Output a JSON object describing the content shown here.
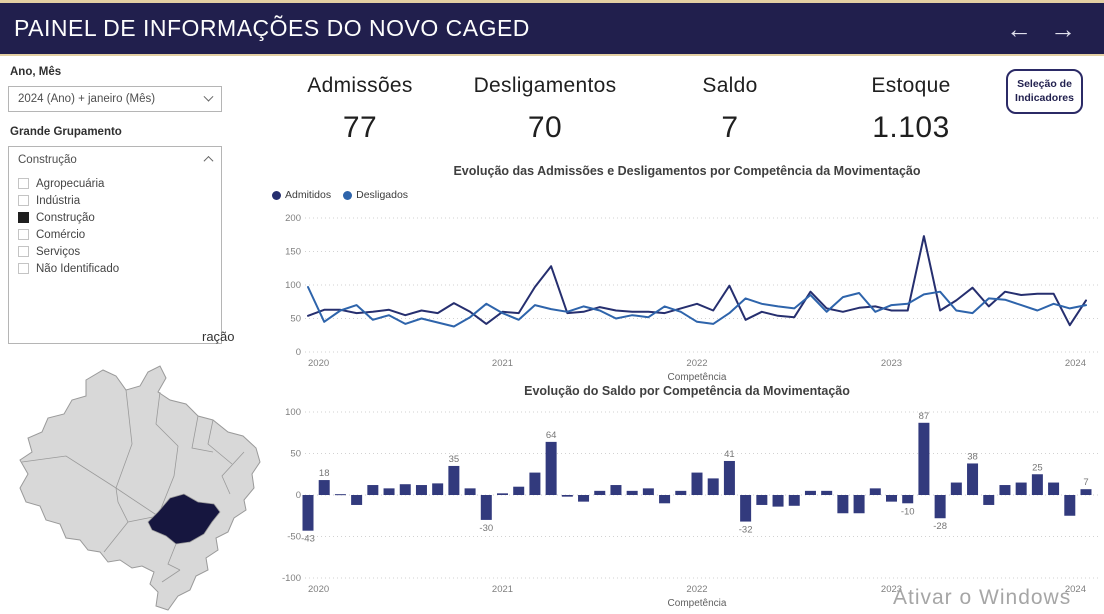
{
  "header": {
    "title": "PAINEL DE INFORMAÇÕES DO NOVO CAGED",
    "nav_back": "←",
    "nav_forward": "→"
  },
  "filters": {
    "ano_mes": {
      "label": "Ano, Mês",
      "value": "2024 (Ano) + janeiro (Mês)"
    },
    "grande_grupamento": {
      "label": "Grande Grupamento",
      "value": "Construção",
      "options": [
        {
          "label": "Agropecuária",
          "checked": false
        },
        {
          "label": "Indústria",
          "checked": false
        },
        {
          "label": "Construção",
          "checked": true
        },
        {
          "label": "Comércio",
          "checked": false
        },
        {
          "label": "Serviços",
          "checked": false
        },
        {
          "label": "Não Identificado",
          "checked": false
        }
      ]
    }
  },
  "obscured_text_fragment": "ração",
  "kpis": [
    {
      "label": "Admissões",
      "value": "77"
    },
    {
      "label": "Desligamentos",
      "value": "70"
    },
    {
      "label": "Saldo",
      "value": "7"
    },
    {
      "label": "Estoque",
      "value": "1.103"
    }
  ],
  "selecao_button": {
    "line1": "Seleção de",
    "line2": "Indicadores"
  },
  "watermark": "Ativar o Windows",
  "map": {
    "base_color": "#d8d8d8",
    "border_color": "#9a9a9a",
    "highlight_color": "#16163f"
  },
  "chart_data": [
    {
      "type": "line",
      "title": "Evolução das Admissões e Desligamentos por Competência da Movimentação",
      "xlabel": "Competência",
      "x_tick_labels": [
        "2020",
        "2021",
        "2022",
        "2023",
        "2024"
      ],
      "ylim": [
        0,
        200
      ],
      "y_ticks": [
        0,
        50,
        100,
        150,
        200
      ],
      "grid": "dotted-horizontal",
      "legend_position": "top-left",
      "categories": [
        "2020-01",
        "2020-02",
        "2020-03",
        "2020-04",
        "2020-05",
        "2020-06",
        "2020-07",
        "2020-08",
        "2020-09",
        "2020-10",
        "2020-11",
        "2020-12",
        "2021-01",
        "2021-02",
        "2021-03",
        "2021-04",
        "2021-05",
        "2021-06",
        "2021-07",
        "2021-08",
        "2021-09",
        "2021-10",
        "2021-11",
        "2021-12",
        "2022-01",
        "2022-02",
        "2022-03",
        "2022-04",
        "2022-05",
        "2022-06",
        "2022-07",
        "2022-08",
        "2022-09",
        "2022-10",
        "2022-11",
        "2022-12",
        "2023-01",
        "2023-02",
        "2023-03",
        "2023-04",
        "2023-05",
        "2023-06",
        "2023-07",
        "2023-08",
        "2023-09",
        "2023-10",
        "2023-11",
        "2023-12",
        "2024-01"
      ],
      "series": [
        {
          "name": "Admitidos",
          "color": "#262f6f",
          "values": [
            54,
            63,
            63,
            58,
            60,
            63,
            55,
            62,
            58,
            73,
            60,
            42,
            60,
            58,
            97,
            128,
            58,
            60,
            67,
            62,
            60,
            60,
            58,
            65,
            72,
            62,
            99,
            48,
            60,
            54,
            52,
            90,
            65,
            60,
            66,
            68,
            62,
            62,
            173,
            62,
            77,
            96,
            68,
            90,
            85,
            87,
            87,
            40,
            77
          ]
        },
        {
          "name": "Desligados",
          "color": "#2e64ab",
          "values": [
            97,
            45,
            62,
            70,
            48,
            55,
            42,
            50,
            44,
            38,
            52,
            72,
            58,
            48,
            70,
            64,
            60,
            68,
            62,
            50,
            55,
            52,
            68,
            60,
            45,
            42,
            58,
            80,
            72,
            68,
            65,
            85,
            60,
            82,
            88,
            60,
            70,
            72,
            86,
            90,
            62,
            58,
            80,
            78,
            70,
            62,
            72,
            65,
            70
          ]
        }
      ]
    },
    {
      "type": "bar",
      "title": "Evolução do Saldo por Competência da Movimentação",
      "xlabel": "Competência",
      "x_tick_labels": [
        "2020",
        "2021",
        "2022",
        "2023",
        "2024"
      ],
      "ylim": [
        -100,
        100
      ],
      "y_ticks": [
        -100,
        -50,
        0,
        50,
        100
      ],
      "grid": "dotted-horizontal",
      "bar_color": "#323a7d",
      "categories": [
        "2020-01",
        "2020-02",
        "2020-03",
        "2020-04",
        "2020-05",
        "2020-06",
        "2020-07",
        "2020-08",
        "2020-09",
        "2020-10",
        "2020-11",
        "2020-12",
        "2021-01",
        "2021-02",
        "2021-03",
        "2021-04",
        "2021-05",
        "2021-06",
        "2021-07",
        "2021-08",
        "2021-09",
        "2021-10",
        "2021-11",
        "2021-12",
        "2022-01",
        "2022-02",
        "2022-03",
        "2022-04",
        "2022-05",
        "2022-06",
        "2022-07",
        "2022-08",
        "2022-09",
        "2022-10",
        "2022-11",
        "2022-12",
        "2023-01",
        "2023-02",
        "2023-03",
        "2023-04",
        "2023-05",
        "2023-06",
        "2023-07",
        "2023-08",
        "2023-09",
        "2023-10",
        "2023-11",
        "2023-12",
        "2024-01"
      ],
      "values": [
        -43,
        18,
        1,
        -12,
        12,
        8,
        13,
        12,
        14,
        35,
        8,
        -30,
        2,
        10,
        27,
        64,
        -2,
        -8,
        5,
        12,
        5,
        8,
        -10,
        5,
        27,
        20,
        41,
        -32,
        -12,
        -14,
        -13,
        5,
        5,
        -22,
        -22,
        8,
        -8,
        -10,
        87,
        -28,
        15,
        38,
        -12,
        12,
        15,
        25,
        15,
        -25,
        7
      ],
      "data_labels": [
        -43,
        18,
        null,
        null,
        null,
        null,
        null,
        null,
        null,
        35,
        null,
        -30,
        null,
        null,
        null,
        64,
        null,
        null,
        null,
        null,
        null,
        null,
        null,
        null,
        null,
        null,
        41,
        -32,
        null,
        null,
        null,
        null,
        null,
        null,
        null,
        null,
        null,
        -10,
        87,
        -28,
        null,
        38,
        null,
        null,
        null,
        25,
        null,
        null,
        7
      ]
    }
  ]
}
